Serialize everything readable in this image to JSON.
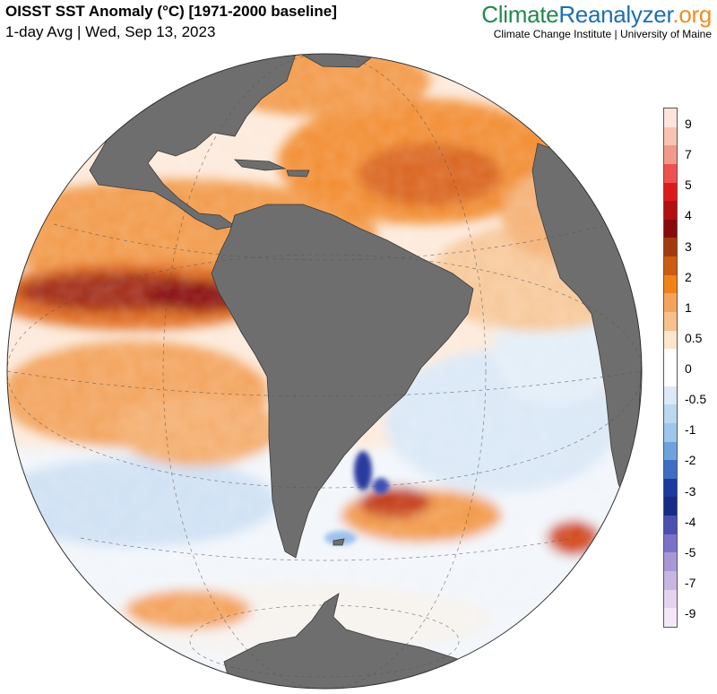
{
  "header": {
    "title": "OISST SST Anomaly (°C) [1971-2000 baseline]",
    "subtitle": "1-day Avg | Wed, Sep 13, 2023"
  },
  "brand": {
    "logo_part1": "Climate",
    "logo_part2": "Reanalyzer",
    "logo_part3": ".org",
    "tagline": "Climate Change Institute | University of Maine"
  },
  "map": {
    "projection": "orthographic",
    "land_color": "#6e6e6e",
    "ocean_neutral_color": "#ffffff"
  },
  "colorbar": {
    "tick_labels": [
      "9",
      "7",
      "5",
      "4",
      "3",
      "2",
      "1",
      "0.5",
      "0",
      "-0.5",
      "-1",
      "-2",
      "-3",
      "-4",
      "-5",
      "-7",
      "-9"
    ],
    "colors": [
      "#fce4dd",
      "#f8c3b3",
      "#f19a89",
      "#ef5151",
      "#de1b1b",
      "#b30f0f",
      "#8a0a0a",
      "#a33b0f",
      "#cc5c12",
      "#f08218",
      "#f5a35a",
      "#f8c08c",
      "#fde6cc",
      "#ffffff",
      "#ffffff",
      "#dceaf7",
      "#bcd7f0",
      "#9dc6ec",
      "#6da3dc",
      "#3d6ec4",
      "#1a3aa0",
      "#162c86",
      "#4a4fb0",
      "#7c71c8",
      "#a897d8",
      "#c7b6e3",
      "#e2d4ef",
      "#f3e9f6"
    ]
  }
}
